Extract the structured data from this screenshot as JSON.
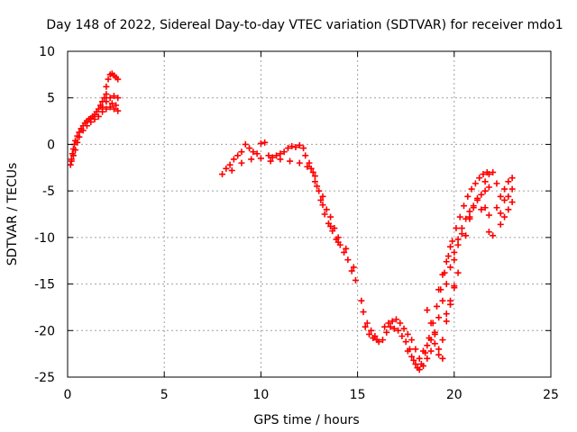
{
  "chart_data": {
    "type": "scatter",
    "title": "Day 148 of 2022, Sidereal Day-to-day VTEC variation (SDTVAR) for receiver mdo1",
    "xlabel": "GPS time / hours",
    "ylabel": "SDTVAR / TECUs",
    "xlim": [
      0,
      25
    ],
    "ylim": [
      -25,
      10
    ],
    "xticks": [
      0,
      5,
      10,
      15,
      20,
      25
    ],
    "yticks": [
      -25,
      -20,
      -15,
      -10,
      -5,
      0,
      5,
      10
    ],
    "grid": true,
    "marker": "plus",
    "color": "#ff0000",
    "series": [
      {
        "points": [
          [
            0.15,
            -2.2
          ],
          [
            0.2,
            -1.6
          ],
          [
            0.25,
            -1.0
          ],
          [
            0.3,
            -0.5
          ],
          [
            0.35,
            0.0
          ],
          [
            0.4,
            0.4
          ],
          [
            0.5,
            0.9
          ],
          [
            0.6,
            1.3
          ],
          [
            0.7,
            1.7
          ],
          [
            0.8,
            2.0
          ],
          [
            0.9,
            2.3
          ],
          [
            1.0,
            2.5
          ],
          [
            1.1,
            2.7
          ],
          [
            1.2,
            2.8
          ],
          [
            1.3,
            3.0
          ],
          [
            1.4,
            3.2
          ],
          [
            1.5,
            3.5
          ],
          [
            1.6,
            3.8
          ],
          [
            1.7,
            4.2
          ],
          [
            1.8,
            4.6
          ],
          [
            1.9,
            5.0
          ],
          [
            2.0,
            6.2
          ],
          [
            2.1,
            7.0
          ],
          [
            2.2,
            7.5
          ],
          [
            2.3,
            7.6
          ],
          [
            2.4,
            7.4
          ],
          [
            2.5,
            7.2
          ],
          [
            2.6,
            7.0
          ],
          [
            0.2,
            -1.8
          ],
          [
            0.3,
            -1.2
          ],
          [
            0.4,
            -0.6
          ],
          [
            0.5,
            0.2
          ],
          [
            0.6,
            0.8
          ],
          [
            0.8,
            1.5
          ],
          [
            1.0,
            2.0
          ],
          [
            1.2,
            2.4
          ],
          [
            1.4,
            2.7
          ],
          [
            1.6,
            3.0
          ],
          [
            1.8,
            3.5
          ],
          [
            2.0,
            3.8
          ],
          [
            2.2,
            4.0
          ],
          [
            2.4,
            3.8
          ],
          [
            2.6,
            3.6
          ],
          [
            1.8,
            4.0
          ],
          [
            2.0,
            4.6
          ],
          [
            2.2,
            5.0
          ],
          [
            2.4,
            5.2
          ],
          [
            2.6,
            5.0
          ],
          [
            2.0,
            5.4
          ],
          [
            2.3,
            4.4
          ],
          [
            2.5,
            4.2
          ],
          [
            8.0,
            -3.2
          ],
          [
            8.2,
            -2.6
          ],
          [
            8.4,
            -2.2
          ],
          [
            8.6,
            -1.6
          ],
          [
            8.8,
            -1.2
          ],
          [
            9.0,
            -0.8
          ],
          [
            9.2,
            0.0
          ],
          [
            9.4,
            -0.4
          ],
          [
            9.6,
            -0.8
          ],
          [
            9.8,
            -1.0
          ],
          [
            10.0,
            0.1
          ],
          [
            10.2,
            0.2
          ],
          [
            10.4,
            -1.2
          ],
          [
            10.6,
            -1.4
          ],
          [
            10.8,
            -1.2
          ],
          [
            11.0,
            -1.0
          ],
          [
            11.2,
            -0.8
          ],
          [
            11.4,
            -0.4
          ],
          [
            11.6,
            -0.2
          ],
          [
            11.8,
            -0.3
          ],
          [
            12.0,
            -0.1
          ],
          [
            12.2,
            -0.4
          ],
          [
            12.3,
            -1.2
          ],
          [
            12.5,
            -2.0
          ],
          [
            12.7,
            -3.0
          ],
          [
            12.9,
            -4.5
          ],
          [
            13.1,
            -6.0
          ],
          [
            13.3,
            -7.5
          ],
          [
            13.5,
            -8.5
          ],
          [
            13.7,
            -9.3
          ],
          [
            13.9,
            -10.2
          ],
          [
            14.1,
            -10.8
          ],
          [
            14.3,
            -11.6
          ],
          [
            14.5,
            -12.4
          ],
          [
            14.7,
            -13.6
          ],
          [
            14.9,
            -14.6
          ],
          [
            8.5,
            -2.8
          ],
          [
            9.0,
            -2.0
          ],
          [
            9.5,
            -1.6
          ],
          [
            10.0,
            -1.5
          ],
          [
            10.5,
            -1.8
          ],
          [
            11.0,
            -1.6
          ],
          [
            11.5,
            -1.8
          ],
          [
            12.0,
            -2.0
          ],
          [
            12.4,
            -2.4
          ],
          [
            12.8,
            -4.0
          ],
          [
            13.2,
            -6.5
          ],
          [
            13.6,
            -8.8
          ],
          [
            14.0,
            -10.5
          ],
          [
            14.4,
            -11.2
          ],
          [
            14.8,
            -13.2
          ],
          [
            12.6,
            -2.6
          ],
          [
            12.8,
            -3.4
          ],
          [
            13.0,
            -5.0
          ],
          [
            13.2,
            -5.6
          ],
          [
            13.4,
            -7.0
          ],
          [
            13.6,
            -7.8
          ],
          [
            13.8,
            -9.0
          ],
          [
            14.0,
            -10.0
          ],
          [
            15.2,
            -16.8
          ],
          [
            15.3,
            -18.0
          ],
          [
            15.5,
            -19.2
          ],
          [
            15.7,
            -20.0
          ],
          [
            15.9,
            -20.6
          ],
          [
            16.1,
            -21.2
          ],
          [
            16.3,
            -21.0
          ],
          [
            16.5,
            -20.2
          ],
          [
            16.7,
            -19.6
          ],
          [
            16.9,
            -19.8
          ],
          [
            17.1,
            -20.0
          ],
          [
            17.3,
            -20.6
          ],
          [
            17.5,
            -21.2
          ],
          [
            17.7,
            -22.0
          ],
          [
            17.9,
            -23.2
          ],
          [
            18.1,
            -24.0
          ],
          [
            18.3,
            -23.6
          ],
          [
            18.5,
            -22.4
          ],
          [
            18.7,
            -20.8
          ],
          [
            18.9,
            -19.2
          ],
          [
            19.1,
            -17.4
          ],
          [
            19.3,
            -15.6
          ],
          [
            19.5,
            -13.8
          ],
          [
            19.7,
            -12.0
          ],
          [
            19.9,
            -10.4
          ],
          [
            20.1,
            -9.0
          ],
          [
            20.3,
            -7.8
          ],
          [
            20.5,
            -6.6
          ],
          [
            20.7,
            -5.6
          ],
          [
            20.9,
            -4.8
          ],
          [
            21.1,
            -4.2
          ],
          [
            21.3,
            -3.6
          ],
          [
            21.5,
            -3.2
          ],
          [
            21.7,
            -3.0
          ],
          [
            15.4,
            -19.6
          ],
          [
            15.6,
            -20.4
          ],
          [
            15.8,
            -20.8
          ],
          [
            16.0,
            -21.0
          ],
          [
            16.4,
            -19.6
          ],
          [
            16.6,
            -19.2
          ],
          [
            16.8,
            -19.0
          ],
          [
            17.0,
            -18.8
          ],
          [
            17.2,
            -19.2
          ],
          [
            17.4,
            -19.8
          ],
          [
            17.6,
            -20.4
          ],
          [
            17.8,
            -21.0
          ],
          [
            18.0,
            -22.0
          ],
          [
            18.2,
            -23.0
          ],
          [
            18.4,
            -22.2
          ],
          [
            18.6,
            -21.6
          ],
          [
            18.8,
            -21.0
          ],
          [
            19.0,
            -20.2
          ],
          [
            19.2,
            -18.6
          ],
          [
            19.4,
            -16.8
          ],
          [
            19.6,
            -15.0
          ],
          [
            19.8,
            -13.2
          ],
          [
            20.0,
            -11.6
          ],
          [
            20.2,
            -10.2
          ],
          [
            20.4,
            -9.0
          ],
          [
            20.6,
            -8.0
          ],
          [
            20.8,
            -7.2
          ],
          [
            21.0,
            -6.6
          ],
          [
            21.2,
            -6.0
          ],
          [
            21.4,
            -5.4
          ],
          [
            21.6,
            -5.0
          ],
          [
            21.8,
            -4.6
          ],
          [
            17.6,
            -22.2
          ],
          [
            17.8,
            -22.8
          ],
          [
            18.0,
            -23.6
          ],
          [
            18.2,
            -24.2
          ],
          [
            18.4,
            -23.8
          ],
          [
            18.6,
            -23.0
          ],
          [
            18.8,
            -22.2
          ],
          [
            19.0,
            -21.4
          ],
          [
            19.2,
            -22.6
          ],
          [
            19.4,
            -21.0
          ],
          [
            19.6,
            -19.0
          ],
          [
            19.8,
            -17.2
          ],
          [
            20.0,
            -15.4
          ],
          [
            18.6,
            -17.8
          ],
          [
            18.8,
            -19.2
          ],
          [
            19.0,
            -20.4
          ],
          [
            19.2,
            -22.0
          ],
          [
            19.4,
            -23.0
          ],
          [
            19.2,
            -15.6
          ],
          [
            19.4,
            -14.0
          ],
          [
            19.6,
            -12.6
          ],
          [
            19.8,
            -11.0
          ],
          [
            20.0,
            -12.4
          ],
          [
            20.2,
            -10.8
          ],
          [
            20.4,
            -9.6
          ],
          [
            20.6,
            -9.8
          ],
          [
            20.8,
            -8.0
          ],
          [
            19.6,
            -18.2
          ],
          [
            19.8,
            -16.8
          ],
          [
            20.0,
            -15.2
          ],
          [
            20.2,
            -13.8
          ],
          [
            21.8,
            -9.4
          ],
          [
            22.0,
            -9.8
          ],
          [
            22.2,
            -6.8
          ],
          [
            22.4,
            -7.4
          ],
          [
            22.6,
            -6.0
          ],
          [
            22.8,
            -5.6
          ],
          [
            23.0,
            -4.8
          ],
          [
            22.2,
            -4.2
          ],
          [
            22.4,
            -5.6
          ],
          [
            22.6,
            -4.8
          ],
          [
            22.8,
            -4.0
          ],
          [
            23.0,
            -3.6
          ],
          [
            22.4,
            -8.6
          ],
          [
            22.6,
            -7.8
          ],
          [
            22.8,
            -7.0
          ],
          [
            23.0,
            -6.2
          ],
          [
            21.4,
            -7.0
          ],
          [
            21.6,
            -6.8
          ],
          [
            21.8,
            -7.6
          ],
          [
            21.6,
            -4.0
          ],
          [
            21.8,
            -3.2
          ],
          [
            22.0,
            -3.0
          ],
          [
            21.2,
            -5.8
          ],
          [
            21.0,
            -6.8
          ],
          [
            20.8,
            -7.8
          ]
        ]
      }
    ]
  }
}
